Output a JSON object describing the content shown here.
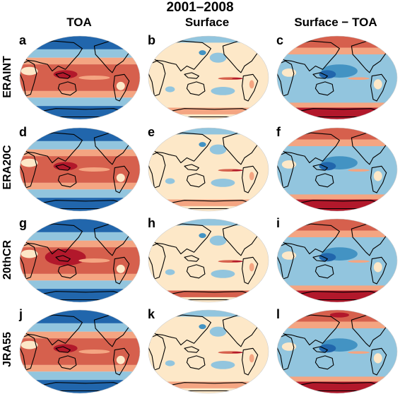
{
  "figure": {
    "title": "2001–2008",
    "columns": [
      {
        "label": "TOA",
        "field": "toa"
      },
      {
        "label": "Surface",
        "field": "surface"
      },
      {
        "label": "Surface − TOA",
        "field": "difference"
      }
    ],
    "rows": [
      {
        "label": "ERAINT",
        "letters": [
          "a",
          "b",
          "c"
        ]
      },
      {
        "label": "ERA20C",
        "letters": [
          "d",
          "e",
          "f"
        ]
      },
      {
        "label": "20thCR",
        "letters": [
          "g",
          "h",
          "i"
        ]
      },
      {
        "label": "JRA55",
        "letters": [
          "j",
          "k",
          "l"
        ]
      }
    ]
  },
  "map": {
    "projection": "Hammer-Aitoff, Pacific-centred",
    "shading": "diverging blue-to-red field, red positive, blue negative",
    "colors": {
      "deep_red": "#b2182b",
      "red": "#d6604d",
      "orange": "#f4a582",
      "cream": "#fde8c8",
      "light_blue": "#92c5de",
      "blue": "#4393c3",
      "deep_blue": "#2166ac",
      "coastline": "#000000"
    }
  }
}
